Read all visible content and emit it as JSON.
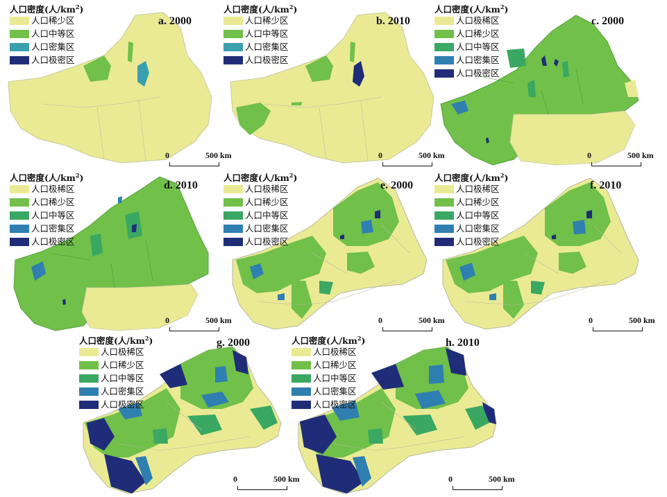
{
  "legend_title": "人口密度(人/km",
  "legend_title_sup": "2",
  "legend_title_close": ")",
  "colors": {
    "extreme_sparse": "#eaea95",
    "sparse": "#70c04a",
    "medium": "#3aa862",
    "dense": "#2f7fb0",
    "extreme_dense": "#1f2d78",
    "border": "#b8b8a0"
  },
  "legend_items_4": [
    {
      "label": "人口稀少区",
      "color": "#eaea95"
    },
    {
      "label": "人口中等区",
      "color": "#70c04a"
    },
    {
      "label": "人口密集区",
      "color": "#3aa0b0"
    },
    {
      "label": "人口极密区",
      "color": "#1f2d78"
    }
  ],
  "legend_items_5": [
    {
      "label": "人口极稀区",
      "color": "#eaea95"
    },
    {
      "label": "人口稀少区",
      "color": "#70c04a"
    },
    {
      "label": "人口中等区",
      "color": "#3aa862"
    },
    {
      "label": "人口密集区",
      "color": "#2f7fb0"
    },
    {
      "label": "人口极密区",
      "color": "#1f2d78"
    }
  ],
  "panels": {
    "a": {
      "label": "a. 2000"
    },
    "b": {
      "label": "b. 2010"
    },
    "c": {
      "label": "c. 2000"
    },
    "d": {
      "label": "d. 2010"
    },
    "e": {
      "label": "e. 2000"
    },
    "f": {
      "label": "f. 2010"
    },
    "g": {
      "label": "g. 2000"
    },
    "h": {
      "label": "h. 2010"
    }
  },
  "scale": {
    "zero": "0",
    "end": "500 km"
  }
}
